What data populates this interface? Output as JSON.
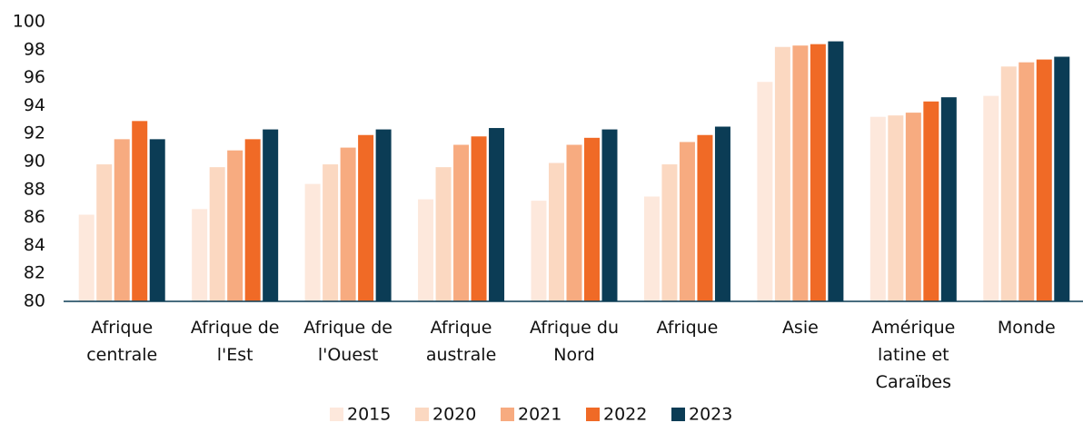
{
  "chart_data": {
    "type": "bar",
    "categories": [
      "Afrique centrale",
      "Afrique de l'Est",
      "Afrique de l'Ouest",
      "Afrique australe",
      "Afrique du Nord",
      "Afrique",
      "Asie",
      "Amérique latine et Caraïbes",
      "Monde"
    ],
    "series": [
      {
        "name": "2015",
        "color": "#fde8dc",
        "values": [
          86.2,
          86.6,
          88.4,
          87.3,
          87.2,
          87.5,
          95.7,
          93.2,
          94.7
        ]
      },
      {
        "name": "2020",
        "color": "#fbd8c1",
        "values": [
          89.8,
          89.6,
          89.8,
          89.6,
          89.9,
          89.8,
          98.2,
          93.3,
          96.8
        ]
      },
      {
        "name": "2021",
        "color": "#f7ab80",
        "values": [
          91.6,
          90.8,
          91.0,
          91.2,
          91.2,
          91.4,
          98.3,
          93.5,
          97.1
        ]
      },
      {
        "name": "2022",
        "color": "#f06a26",
        "values": [
          92.9,
          91.6,
          91.9,
          91.8,
          91.7,
          91.9,
          98.4,
          94.3,
          97.3
        ]
      },
      {
        "name": "2023",
        "color": "#0b3c55",
        "values": [
          91.6,
          92.3,
          92.3,
          92.4,
          92.3,
          92.5,
          98.6,
          94.6,
          97.5
        ]
      }
    ],
    "ylim": [
      80,
      100
    ],
    "yticks": [
      80,
      82,
      84,
      86,
      88,
      90,
      92,
      94,
      96,
      98,
      100
    ],
    "grid": false,
    "legend": "bottom"
  }
}
